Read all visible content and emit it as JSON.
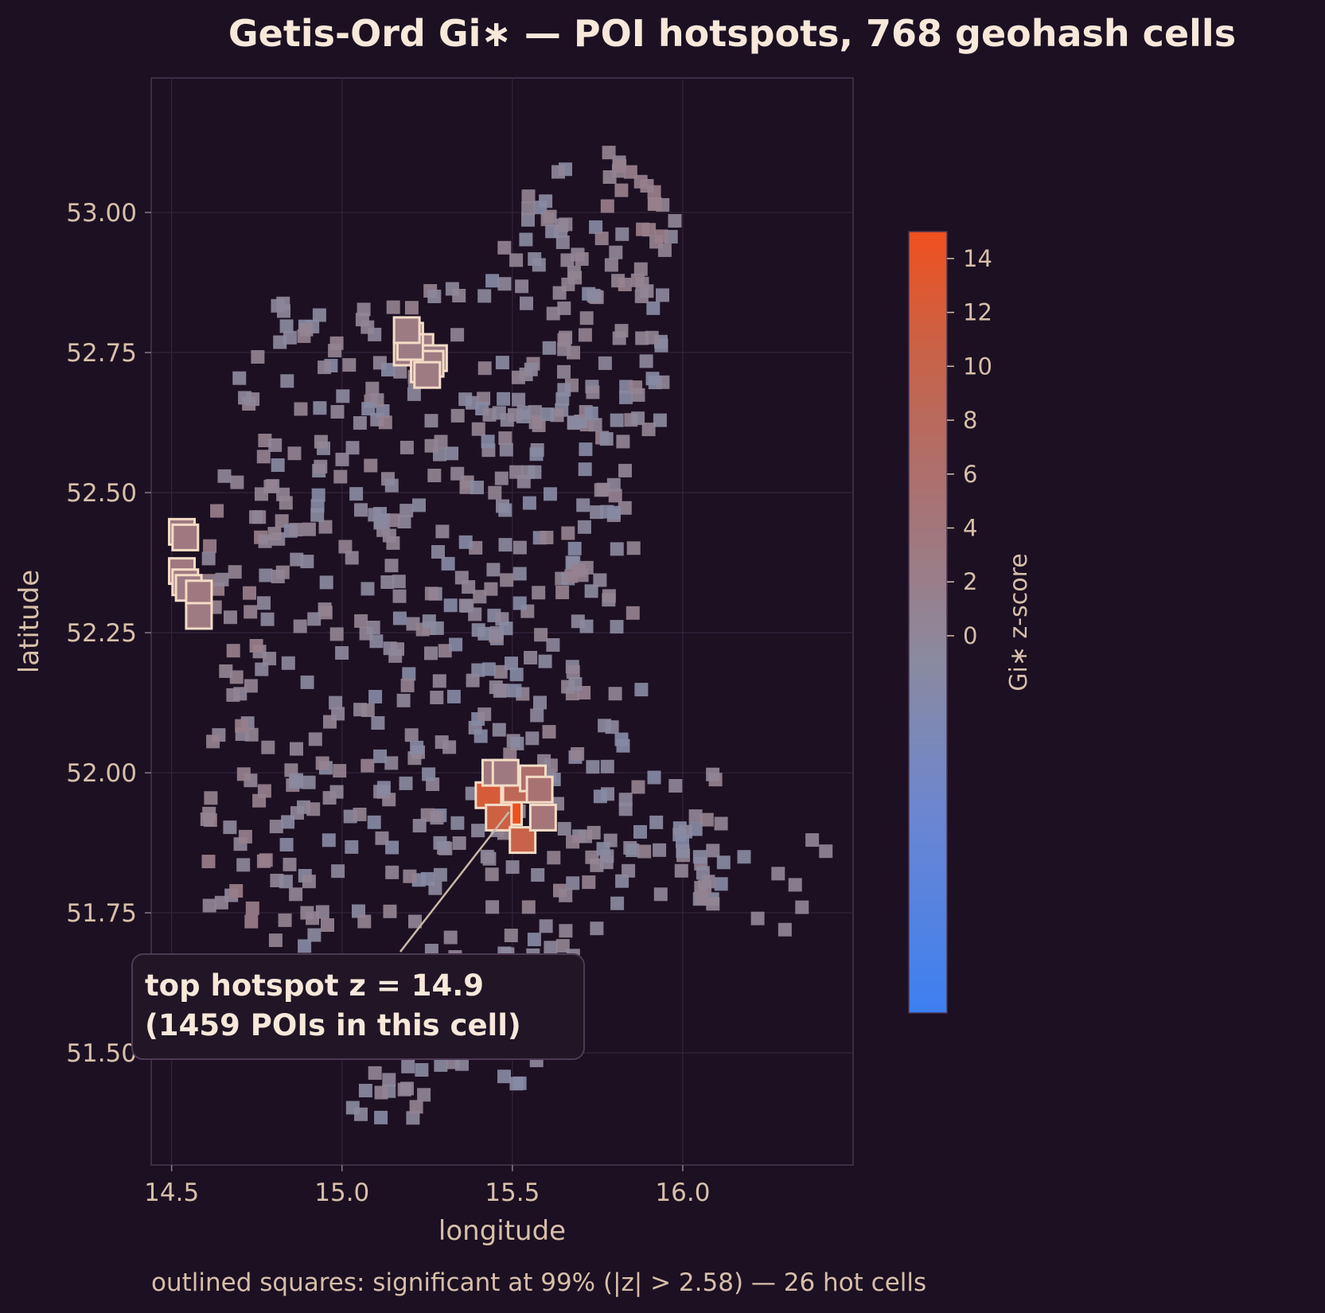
{
  "chart_data": {
    "type": "scatter",
    "title": "Getis-Ord Gi∗ — POI hotspots, 768 geohash cells",
    "xlabel": "longitude",
    "ylabel": "latitude",
    "xlim": [
      14.44,
      16.5
    ],
    "ylim": [
      51.3,
      53.24
    ],
    "x_ticks": [
      14.5,
      15.0,
      15.5,
      16.0
    ],
    "x_tick_labels": [
      "14.5",
      "15.0",
      "15.5",
      "16.0"
    ],
    "y_ticks": [
      51.5,
      51.75,
      52.0,
      52.25,
      52.5,
      52.75,
      53.0
    ],
    "y_tick_labels": [
      "51.50",
      "51.75",
      "52.00",
      "52.25",
      "52.50",
      "52.75",
      "53.00"
    ],
    "grid": true,
    "colorbar": {
      "label": "Gi∗ z-score",
      "range": [
        -14.0,
        15.0
      ],
      "ticks": [
        0,
        2,
        4,
        6,
        8,
        10,
        12,
        14
      ],
      "tick_labels": [
        "0",
        "2",
        "4",
        "6",
        "8",
        "10",
        "12",
        "14"
      ],
      "colors": [
        "#3d7ff1",
        "#6b86d1",
        "#8a8aa0",
        "#a77375",
        "#c96247",
        "#f0501e"
      ]
    },
    "annotation": {
      "line1": "top hotspot  z = 14.9",
      "line2": "(1459 POIs in this cell)",
      "x": 15.49,
      "y": 51.93
    },
    "footer": "outlined squares: significant at 99% (|z| > 2.58) — 26 hot cells",
    "significant_cells": [
      {
        "lon": 15.49,
        "lat": 51.93,
        "z": 14.9
      },
      {
        "lon": 15.43,
        "lat": 51.96,
        "z": 12.1
      },
      {
        "lon": 15.46,
        "lat": 51.92,
        "z": 11.0
      },
      {
        "lon": 15.53,
        "lat": 51.88,
        "z": 10.4
      },
      {
        "lon": 15.51,
        "lat": 51.97,
        "z": 8.6
      },
      {
        "lon": 15.56,
        "lat": 51.99,
        "z": 6.0
      },
      {
        "lon": 15.58,
        "lat": 51.97,
        "z": 5.2
      },
      {
        "lon": 15.59,
        "lat": 51.92,
        "z": 4.2
      },
      {
        "lon": 15.45,
        "lat": 52.0,
        "z": 3.6
      },
      {
        "lon": 15.48,
        "lat": 52.0,
        "z": 3.3
      },
      {
        "lon": 15.2,
        "lat": 52.78,
        "z": 3.5
      },
      {
        "lon": 15.23,
        "lat": 52.76,
        "z": 3.0
      },
      {
        "lon": 15.19,
        "lat": 52.75,
        "z": 3.1
      },
      {
        "lon": 15.24,
        "lat": 52.72,
        "z": 3.4
      },
      {
        "lon": 15.27,
        "lat": 52.74,
        "z": 2.9
      },
      {
        "lon": 15.26,
        "lat": 52.73,
        "z": 3.2
      },
      {
        "lon": 15.2,
        "lat": 52.76,
        "z": 2.8
      },
      {
        "lon": 15.19,
        "lat": 52.79,
        "z": 2.9
      },
      {
        "lon": 14.53,
        "lat": 52.43,
        "z": 3.2
      },
      {
        "lon": 14.54,
        "lat": 52.42,
        "z": 3.4
      },
      {
        "lon": 14.53,
        "lat": 52.36,
        "z": 3.6
      },
      {
        "lon": 14.54,
        "lat": 52.34,
        "z": 3.2
      },
      {
        "lon": 14.55,
        "lat": 52.33,
        "z": 3.0
      },
      {
        "lon": 14.58,
        "lat": 52.32,
        "z": 3.5
      },
      {
        "lon": 14.58,
        "lat": 52.28,
        "z": 3.1
      },
      {
        "lon": 15.25,
        "lat": 52.71,
        "z": 3.0
      }
    ]
  }
}
